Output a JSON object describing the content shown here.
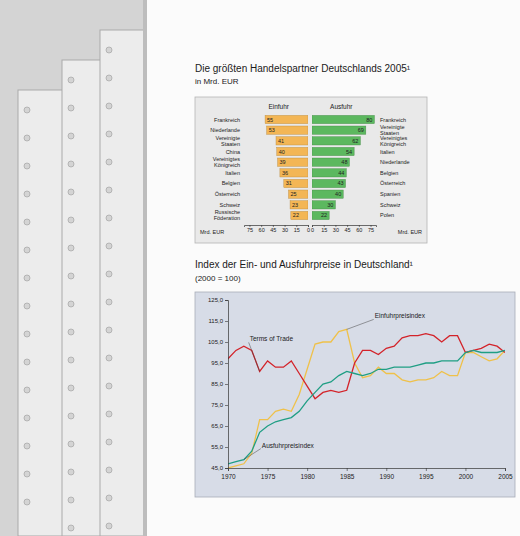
{
  "chart_data": [
    {
      "type": "bar",
      "title": "Die größten Handelspartner Deutschlands 2005¹",
      "subtitle": "in Mrd. EUR",
      "orientation": "horizontal",
      "data_labels": true,
      "grid": false,
      "xlabel": "Mrd. EUR",
      "xlim": [
        0,
        82
      ],
      "xticks": [
        0,
        15,
        30,
        45,
        60,
        75
      ],
      "series": [
        {
          "name": "Einfuhr",
          "color": "#f3b655",
          "categories": [
            "Frankreich",
            "Niederlande",
            "Vereinigte Staaten",
            "China",
            "Vereinigtes Königreich",
            "Italien",
            "Belgien",
            "Österreich",
            "Schweiz",
            "Russische Föderation"
          ],
          "values": [
            55,
            53,
            41,
            40,
            39,
            36,
            31,
            25,
            23,
            22
          ]
        },
        {
          "name": "Ausfuhr",
          "color": "#5cb85f",
          "categories": [
            "Frankreich",
            "Vereinigte Staaten",
            "Vereinigtes Königreich",
            "Italien",
            "Niederlande",
            "Belgien",
            "Österreich",
            "Spanien",
            "Schweiz",
            "Polen"
          ],
          "values": [
            80,
            69,
            62,
            54,
            48,
            44,
            43,
            40,
            30,
            22
          ]
        }
      ]
    },
    {
      "type": "line",
      "title": "Index der Ein- und Ausfuhrpreise in Deutschland¹",
      "subtitle": "(2000 = 100)",
      "grid": false,
      "x": [
        1970,
        1971,
        1972,
        1973,
        1974,
        1975,
        1976,
        1977,
        1978,
        1979,
        1980,
        1981,
        1982,
        1983,
        1984,
        1985,
        1986,
        1987,
        1988,
        1989,
        1990,
        1991,
        1992,
        1993,
        1994,
        1995,
        1996,
        1997,
        1998,
        1999,
        2000,
        2001,
        2002,
        2003,
        2004,
        2005
      ],
      "xlim": [
        1970,
        2005
      ],
      "xticks": [
        1970,
        1975,
        1980,
        1985,
        1990,
        1995,
        2000,
        2005
      ],
      "ylim": [
        45,
        125
      ],
      "yticks": [
        {
          "value": 45,
          "label": "45,0"
        },
        {
          "value": 55,
          "label": "55,0"
        },
        {
          "value": 65,
          "label": "65,0"
        },
        {
          "value": 75,
          "label": "75,0"
        },
        {
          "value": 85,
          "label": "85,0"
        },
        {
          "value": 95,
          "label": "95,0"
        },
        {
          "value": 105,
          "label": "105,0"
        },
        {
          "value": 115,
          "label": "115,0"
        },
        {
          "value": 125,
          "label": "125,0"
        }
      ],
      "series": [
        {
          "name": "Einfuhrpreisindex",
          "color": "#efc14a",
          "values": [
            45,
            46,
            47,
            52,
            68,
            68,
            72,
            73,
            72,
            80,
            92,
            104,
            105,
            105,
            110,
            111,
            95,
            88,
            89,
            93,
            90,
            90,
            87,
            86,
            87,
            87,
            88,
            91,
            89,
            89,
            100,
            100,
            98,
            96,
            97,
            101
          ]
        },
        {
          "name": "Terms of Trade",
          "color": "#d3232a",
          "values": [
            97,
            101,
            103,
            101,
            91,
            96,
            93,
            93,
            96,
            90,
            84,
            78,
            81,
            82,
            81,
            82,
            95,
            101,
            101,
            99,
            102,
            103,
            107,
            108,
            108,
            109,
            108,
            105,
            108,
            108,
            100,
            101,
            102,
            104,
            103,
            100
          ]
        },
        {
          "name": "Ausfuhrpreisindex",
          "color": "#1f9e84",
          "values": [
            47,
            48,
            49,
            53,
            62,
            65,
            67,
            68,
            69,
            72,
            77,
            81,
            85,
            86,
            89,
            91,
            90,
            89,
            90,
            92,
            92,
            93,
            93,
            93,
            94,
            95,
            95,
            96,
            96,
            96,
            100,
            101,
            100,
            100,
            100,
            101
          ]
        }
      ]
    }
  ]
}
